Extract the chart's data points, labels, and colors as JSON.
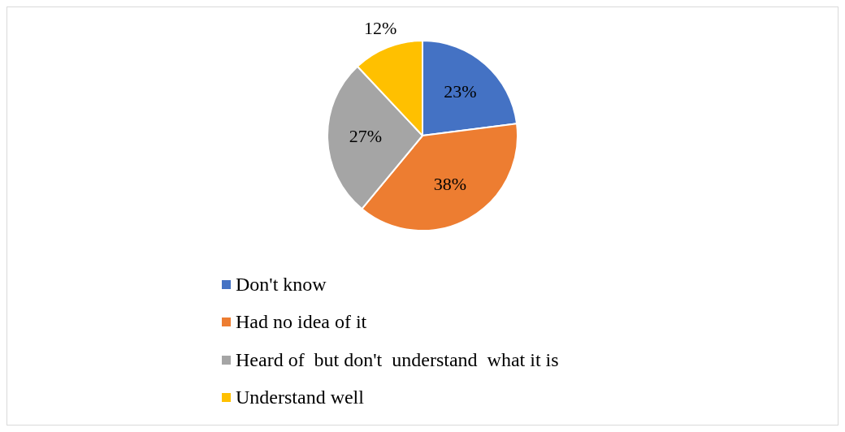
{
  "chart_data": {
    "type": "pie",
    "categories": [
      "Don't know",
      "Had no idea of it",
      "Heard of  but don't  understand  what it is",
      "Understand well"
    ],
    "values": [
      23,
      38,
      27,
      12
    ],
    "colors": [
      "#4472c4",
      "#ed7d31",
      "#a5a5a5",
      "#ffc000"
    ],
    "value_labels": [
      "23%",
      "38%",
      "27%",
      "12%"
    ],
    "legend": "bottom"
  }
}
